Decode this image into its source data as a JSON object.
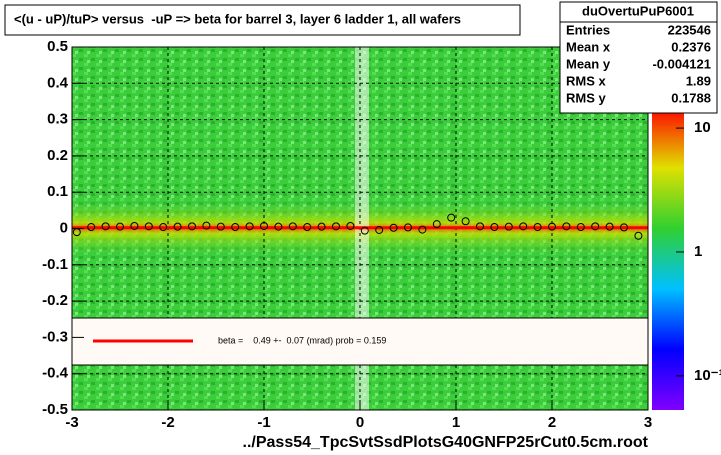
{
  "chart_data": {
    "type": "profile2d",
    "title": "<(u - uP)/tuP> versus  -uP => beta for barrel 3, layer 6 ladder 1, all wafers",
    "x_label": "../Pass54_TpcSvtSsdPlotsG40GNFP25rCut0.5cm.root",
    "xlim": [
      -3,
      3
    ],
    "xticks": [
      -3,
      -2,
      -1,
      0,
      1,
      2,
      3
    ],
    "ylim": [
      -0.5,
      0.5
    ],
    "yticks": [
      0.5,
      0.4,
      0.3,
      0.2,
      0.1,
      0,
      -0.1,
      -0.2,
      -0.3,
      -0.4,
      -0.5
    ],
    "zlim": [
      0.053,
      14.8
    ],
    "zscale": "log",
    "zticks": [
      10,
      1,
      {
        "value": 0.1,
        "label": "10⁻¹"
      }
    ],
    "grid": true,
    "series": [
      {
        "name": "profile",
        "color": "#000000",
        "x": [
          -2.95,
          -2.8,
          -2.65,
          -2.5,
          -2.35,
          -2.2,
          -2.05,
          -1.9,
          -1.75,
          -1.6,
          -1.45,
          -1.3,
          -1.15,
          -1.0,
          -0.85,
          -0.7,
          -0.55,
          -0.4,
          -0.25,
          -0.1,
          0.05,
          0.2,
          0.35,
          0.5,
          0.65,
          0.8,
          0.95,
          1.1,
          1.25,
          1.4,
          1.55,
          1.7,
          1.85,
          2.0,
          2.15,
          2.3,
          2.45,
          2.6,
          2.75,
          2.9
        ],
        "values": [
          -0.01,
          0.004,
          0.006,
          0.005,
          0.007,
          0.006,
          0.004,
          0.005,
          0.006,
          0.008,
          0.005,
          0.004,
          0.006,
          0.007,
          0.005,
          0.006,
          0.004,
          0.005,
          0.006,
          0.007,
          -0.006,
          -0.004,
          0.002,
          0.003,
          -0.003,
          0.012,
          0.03,
          0.02,
          0.006,
          0.004,
          0.005,
          0.006,
          0.004,
          0.005,
          0.006,
          0.004,
          0.006,
          0.005,
          0.003,
          -0.02
        ]
      }
    ],
    "fit": {
      "color": "#ff0000",
      "x": [
        -3,
        3
      ],
      "values": [
        0.002,
        0.002
      ]
    },
    "legend_text": "beta =    0.49 +-  0.07 (mrad) prob = 0.159",
    "stats": {
      "title": "duOvertuPuP6001",
      "rows": [
        {
          "label": "Entries",
          "value": 223546
        },
        {
          "label": "Mean x",
          "value": 0.2376
        },
        {
          "label": "Mean y",
          "value": -0.004121
        },
        {
          "label": "RMS x",
          "value": 1.89
        },
        {
          "label": "RMS y",
          "value": 0.1788
        }
      ]
    }
  }
}
